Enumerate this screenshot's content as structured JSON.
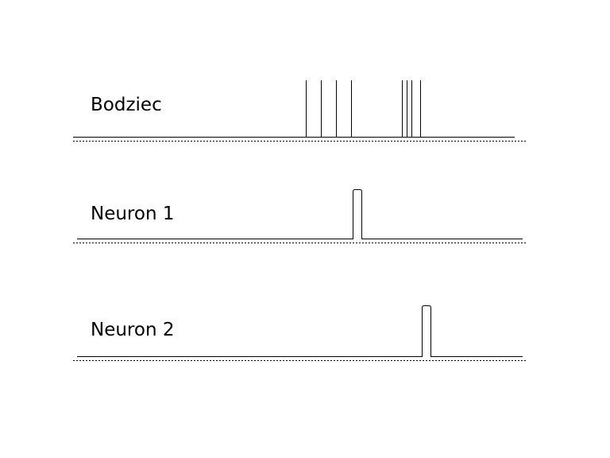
{
  "rows": [
    {
      "label": "Bodziec",
      "type": "impulses"
    },
    {
      "label": "Neuron 1",
      "type": "pulse"
    },
    {
      "label": "Neuron 2",
      "type": "pulse"
    }
  ],
  "colors": {
    "signal": "#000000",
    "background": "#ffffff"
  }
}
